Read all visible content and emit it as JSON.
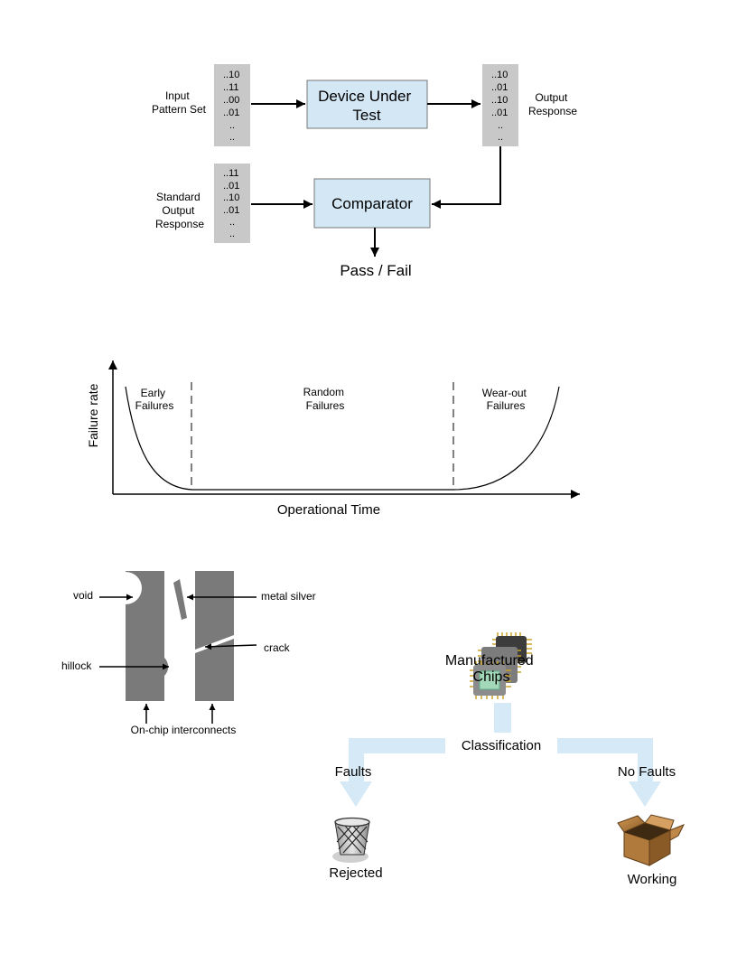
{
  "test_flow": {
    "input_label": [
      "Input",
      "Pattern Set"
    ],
    "input_patterns": [
      "..10",
      "..11",
      "..00",
      "..01",
      "..",
      ".."
    ],
    "dut_label": [
      "Device Under",
      "Test"
    ],
    "output_patterns": [
      "..10",
      "..01",
      "..10",
      "..01",
      "..",
      ".."
    ],
    "output_label": [
      "Output",
      "Response"
    ],
    "standard_label": [
      "Standard",
      "Output",
      "Response"
    ],
    "standard_patterns": [
      "..11",
      "..01",
      "..10",
      "..01",
      "..",
      ".."
    ],
    "comparator_label": "Comparator",
    "result_label": "Pass / Fail",
    "colors": {
      "box_fill": "#d3e7f5",
      "pattern_fill": "#c8c8c8"
    }
  },
  "bathtub": {
    "ylabel": "Failure rate",
    "xlabel": "Operational Time",
    "regions": [
      [
        "Early",
        "Failures"
      ],
      [
        "Random",
        "Failures"
      ],
      [
        "Wear-out",
        "Failures"
      ]
    ]
  },
  "interconnects": {
    "labels": {
      "void": "void",
      "hillock": "hillock",
      "metal_silver": "metal silver",
      "crack": "crack",
      "caption": "On-chip interconnects"
    },
    "colors": {
      "metal": "#7a7a7a"
    }
  },
  "classification": {
    "chips_label": [
      "Manufactured",
      "Chips"
    ],
    "classification_label": "Classification",
    "faults_label": "Faults",
    "no_faults_label": "No Faults",
    "rejected_label": "Rejected",
    "working_label": "Working",
    "colors": {
      "flow": "#d6e9f7"
    }
  }
}
